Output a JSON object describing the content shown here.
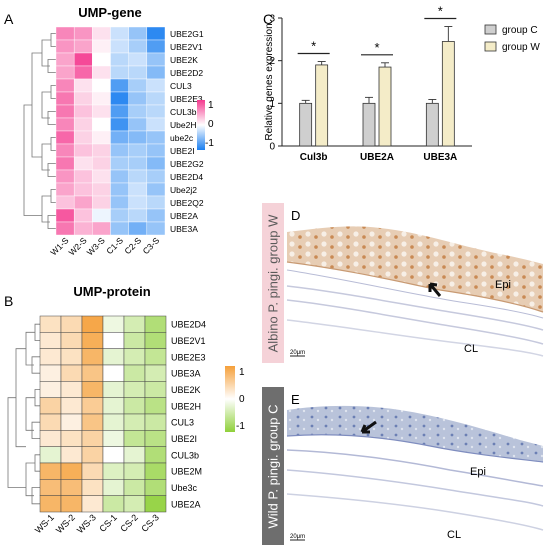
{
  "panels": {
    "A": {
      "letter": "A",
      "title": "UMP-gene",
      "rows": [
        "UBE2G1",
        "UBE2V1",
        "UBE2K",
        "UBE2D2",
        "CUL3",
        "UBE2E3",
        "CUL3b",
        "Ube2H",
        "ube2c",
        "UBE2I",
        "UBE2G2",
        "UBE2D4",
        "Ube2j2",
        "UBE2Q2",
        "UBE2A",
        "UBE3A"
      ],
      "cols": [
        "W1-S",
        "W2-S",
        "W3-S",
        "C1-S",
        "C2-S",
        "C3-S"
      ],
      "legend_ticks": [
        "1",
        "0",
        "-1"
      ],
      "values": [
        [
          0.8,
          0.7,
          0.2,
          -0.3,
          -0.6,
          -1.2
        ],
        [
          0.7,
          0.6,
          0.1,
          -0.3,
          -0.5,
          -1.0
        ],
        [
          0.6,
          1.2,
          0.0,
          -0.4,
          -0.3,
          -0.6
        ],
        [
          0.6,
          1.0,
          0.2,
          -0.4,
          -0.4,
          -0.7
        ],
        [
          0.8,
          0.2,
          0.0,
          -1.0,
          -0.5,
          -0.3
        ],
        [
          0.9,
          0.3,
          0.1,
          -1.2,
          -0.6,
          -0.4
        ],
        [
          0.9,
          0.4,
          0.2,
          -1.0,
          -0.5,
          -0.4
        ],
        [
          0.8,
          0.3,
          0.0,
          -1.1,
          -0.6,
          -0.3
        ],
        [
          1.0,
          0.3,
          0.1,
          -0.8,
          -0.7,
          -0.6
        ],
        [
          0.8,
          0.4,
          0.3,
          -0.6,
          -0.5,
          -0.6
        ],
        [
          0.9,
          0.2,
          0.3,
          -0.5,
          -0.5,
          -0.7
        ],
        [
          0.7,
          0.4,
          0.2,
          -0.6,
          -0.4,
          -0.5
        ],
        [
          0.6,
          0.4,
          0.3,
          -0.6,
          -0.3,
          -0.6
        ],
        [
          0.4,
          0.6,
          0.3,
          -0.6,
          -0.3,
          -0.4
        ],
        [
          1.1,
          0.4,
          -0.1,
          -0.5,
          -0.4,
          -0.6
        ],
        [
          0.9,
          0.5,
          0.6,
          -0.6,
          -0.8,
          -0.6
        ]
      ]
    },
    "B": {
      "letter": "B",
      "title": "UMP-protein",
      "rows": [
        "UBE2D4",
        "UBE2V1",
        "UBE2E3",
        "UBE3A",
        "UBE2K",
        "UBE2H",
        "CUL3",
        "UBE2I",
        "CUL3b",
        "UBE2M",
        "Ube3c",
        "UBE2A"
      ],
      "cols": [
        "WS-1",
        "WS-2",
        "WS-3",
        "CS-1",
        "CS-2",
        "CS-3"
      ],
      "legend_ticks": [
        "1",
        "0",
        "-1"
      ],
      "values": [
        [
          0.4,
          0.5,
          1.2,
          -0.2,
          -0.5,
          -0.9
        ],
        [
          0.3,
          0.5,
          1.1,
          0.0,
          -0.6,
          -0.9
        ],
        [
          0.3,
          0.4,
          1.0,
          -0.3,
          -0.5,
          -0.7
        ],
        [
          0.2,
          0.5,
          0.8,
          0.0,
          -0.6,
          -0.5
        ],
        [
          0.2,
          0.3,
          1.0,
          -0.3,
          -0.5,
          -0.6
        ],
        [
          0.6,
          0.3,
          0.7,
          -0.3,
          -0.6,
          -0.8
        ],
        [
          0.5,
          0.2,
          0.8,
          -0.3,
          -0.5,
          -0.6
        ],
        [
          0.3,
          0.4,
          0.6,
          -0.2,
          -0.7,
          -0.8
        ],
        [
          -0.3,
          0.3,
          0.6,
          0.0,
          -0.3,
          -0.9
        ],
        [
          1.0,
          1.1,
          0.5,
          -0.4,
          -0.5,
          -1.0
        ],
        [
          0.9,
          0.9,
          0.4,
          -0.3,
          -0.6,
          -0.9
        ],
        [
          1.0,
          1.0,
          0.3,
          -0.6,
          -0.5,
          -1.2
        ]
      ]
    },
    "C": {
      "letter": "C",
      "ylabel": "Relative genes expression",
      "legend": [
        "group C",
        "group W"
      ],
      "significance": "*"
    },
    "D": {
      "letter": "D",
      "side_label": "Albino P. pingi. group W",
      "epi_label": "Epi",
      "cl_label": "CL",
      "scale_label": "20μm"
    },
    "E": {
      "letter": "E",
      "side_label": "Wild P. pingi. group C",
      "epi_label": "Epi",
      "cl_label": "CL",
      "scale_label": "20μm"
    }
  },
  "chart_data": {
    "type": "bar",
    "categories": [
      "Cul3b",
      "UBE2A",
      "UBE3A"
    ],
    "series": [
      {
        "name": "group C",
        "values": [
          1.0,
          1.0,
          1.0
        ],
        "errors": [
          0.07,
          0.14,
          0.09
        ]
      },
      {
        "name": "group W",
        "values": [
          1.9,
          1.85,
          2.45
        ],
        "errors": [
          0.08,
          0.1,
          0.35
        ]
      }
    ],
    "ylabel": "Relative genes expression",
    "ylim": [
      0,
      3
    ],
    "yticks": [
      "0",
      "1",
      "2",
      "3"
    ],
    "colors": {
      "group C": "#cfcfcf",
      "group W": "#f4ecc8"
    },
    "legend_position": "top-right"
  }
}
